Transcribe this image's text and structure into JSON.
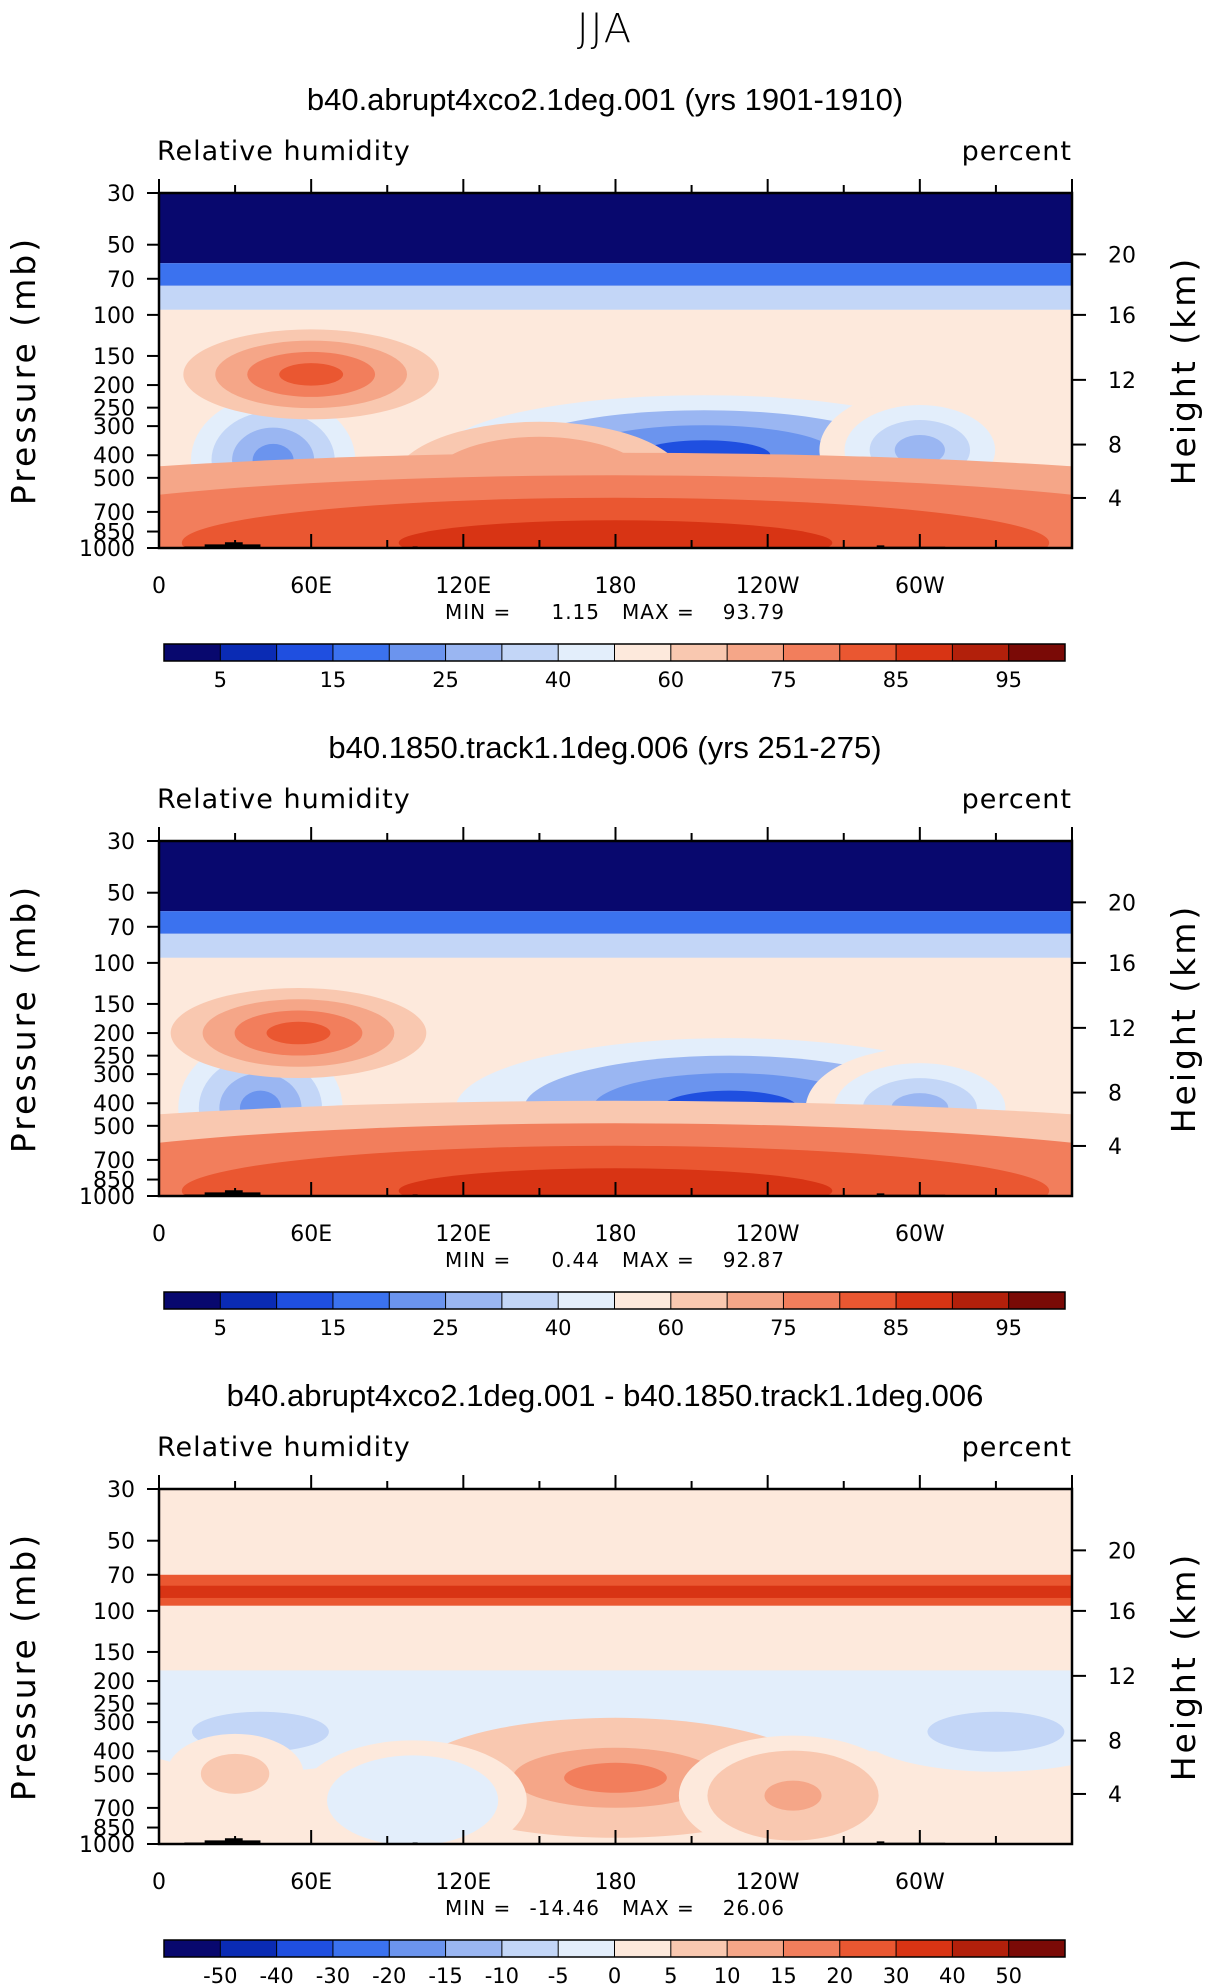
{
  "figure_title": "JJA",
  "chart_data": [
    {
      "type": "heatmap",
      "title": "b40.abrupt4xco2.1deg.001 (yrs 1901-1910)",
      "variable": "Relative humidity",
      "units": "percent",
      "ylabel": "Pressure (mb)",
      "ylabel_right": "Height (km)",
      "x_ticks": [
        "0",
        "60E",
        "120E",
        "180",
        "120W",
        "60W"
      ],
      "y_ticks": [
        "30",
        "50",
        "70",
        "100",
        "150",
        "200",
        "250",
        "300",
        "400",
        "500",
        "700",
        "850",
        "1000"
      ],
      "y2_ticks": [
        "20",
        "16",
        "12",
        "8",
        "4"
      ],
      "min_text": "MIN =",
      "min_value": "1.15",
      "max_text": "MAX =",
      "max_value": "93.79",
      "colorbar_labels": [
        "5",
        "15",
        "25",
        "40",
        "60",
        "75",
        "85",
        "95"
      ],
      "colorbar_colors": [
        "#08086e",
        "#0a2bb4",
        "#1f4fe0",
        "#3b72ef",
        "#6b94ee",
        "#9ab6f2",
        "#c3d6f7",
        "#e3eefb",
        "#fde9dc",
        "#f9c8b0",
        "#f5a688",
        "#f27e5c",
        "#ea5731",
        "#d83414",
        "#b2200b",
        "#7a0a06"
      ],
      "features": [
        {
          "lon": 215,
          "p": 400,
          "rx": 58,
          "ry": 60,
          "value": 18
        },
        {
          "lon": 45,
          "p": 420,
          "rx": 18,
          "ry": 65,
          "value": 30
        },
        {
          "lon": 300,
          "p": 380,
          "rx": 22,
          "ry": 60,
          "value": 35
        },
        {
          "lon": 60,
          "p": 180,
          "rx": 28,
          "ry": 45,
          "value": 75
        },
        {
          "lon": 150,
          "p": 520,
          "rx": 32,
          "ry": 60,
          "value": 70
        },
        {
          "lon": 180,
          "p": 950,
          "rx": 190,
          "ry": 90,
          "value": 85
        }
      ]
    },
    {
      "type": "heatmap",
      "title": "b40.1850.track1.1deg.006 (yrs 251-275)",
      "variable": "Relative humidity",
      "units": "percent",
      "ylabel": "Pressure (mb)",
      "ylabel_right": "Height (km)",
      "x_ticks": [
        "0",
        "60E",
        "120E",
        "180",
        "120W",
        "60W"
      ],
      "y_ticks": [
        "30",
        "50",
        "70",
        "100",
        "150",
        "200",
        "250",
        "300",
        "400",
        "500",
        "700",
        "850",
        "1000"
      ],
      "y2_ticks": [
        "20",
        "16",
        "12",
        "8",
        "4"
      ],
      "min_text": "MIN =",
      "min_value": "0.44",
      "max_text": "MAX =",
      "max_value": "92.87",
      "colorbar_labels": [
        "5",
        "15",
        "25",
        "40",
        "60",
        "75",
        "85",
        "95"
      ],
      "colorbar_colors": [
        "#08086e",
        "#0a2bb4",
        "#1f4fe0",
        "#3b72ef",
        "#6b94ee",
        "#9ab6f2",
        "#c3d6f7",
        "#e3eefb",
        "#fde9dc",
        "#f9c8b0",
        "#f5a688",
        "#f27e5c",
        "#ea5731",
        "#d83414",
        "#b2200b",
        "#7a0a06"
      ],
      "features": [
        {
          "lon": 225,
          "p": 420,
          "rx": 60,
          "ry": 70,
          "value": 15
        },
        {
          "lon": 40,
          "p": 420,
          "rx": 18,
          "ry": 70,
          "value": 25
        },
        {
          "lon": 300,
          "p": 420,
          "rx": 25,
          "ry": 60,
          "value": 35
        },
        {
          "lon": 55,
          "p": 200,
          "rx": 28,
          "ry": 45,
          "value": 78
        },
        {
          "lon": 180,
          "p": 950,
          "rx": 190,
          "ry": 90,
          "value": 83
        }
      ]
    },
    {
      "type": "heatmap",
      "title": "b40.abrupt4xco2.1deg.001 - b40.1850.track1.1deg.006",
      "variable": "Relative humidity",
      "units": "percent",
      "ylabel": "Pressure (mb)",
      "ylabel_right": "Height (km)",
      "x_ticks": [
        "0",
        "60E",
        "120E",
        "180",
        "120W",
        "60W"
      ],
      "y_ticks": [
        "30",
        "50",
        "70",
        "100",
        "150",
        "200",
        "250",
        "300",
        "400",
        "500",
        "700",
        "850",
        "1000"
      ],
      "y2_ticks": [
        "20",
        "16",
        "12",
        "8",
        "4"
      ],
      "min_text": "MIN =",
      "min_value": "-14.46",
      "max_text": "MAX =",
      "max_value": "26.06",
      "colorbar_labels": [
        "-50",
        "-40",
        "-30",
        "-20",
        "-15",
        "-10",
        "-5",
        "0",
        "5",
        "10",
        "15",
        "20",
        "30",
        "40",
        "50"
      ],
      "colorbar_colors": [
        "#08086e",
        "#0a2bb4",
        "#1f4fe0",
        "#3b72ef",
        "#6b94ee",
        "#9ab6f2",
        "#c3d6f7",
        "#e3eefb",
        "#fde9dc",
        "#f9c8b0",
        "#f5a688",
        "#f27e5c",
        "#ea5731",
        "#d83414",
        "#b2200b",
        "#7a0a06"
      ],
      "features": [
        {
          "lon": 180,
          "p": 520,
          "rx": 45,
          "ry": 60,
          "value": 15
        },
        {
          "lon": 250,
          "p": 620,
          "rx": 25,
          "ry": 60,
          "value": 12
        },
        {
          "lon": 40,
          "p": 330,
          "rx": 30,
          "ry": 40,
          "value": -10
        },
        {
          "lon": 330,
          "p": 330,
          "rx": 30,
          "ry": 40,
          "value": -10
        },
        {
          "lon": 100,
          "p": 650,
          "rx": 25,
          "ry": 60,
          "value": -5
        },
        {
          "lon": 30,
          "p": 500,
          "rx": 15,
          "ry": 40,
          "value": 7
        }
      ]
    }
  ]
}
